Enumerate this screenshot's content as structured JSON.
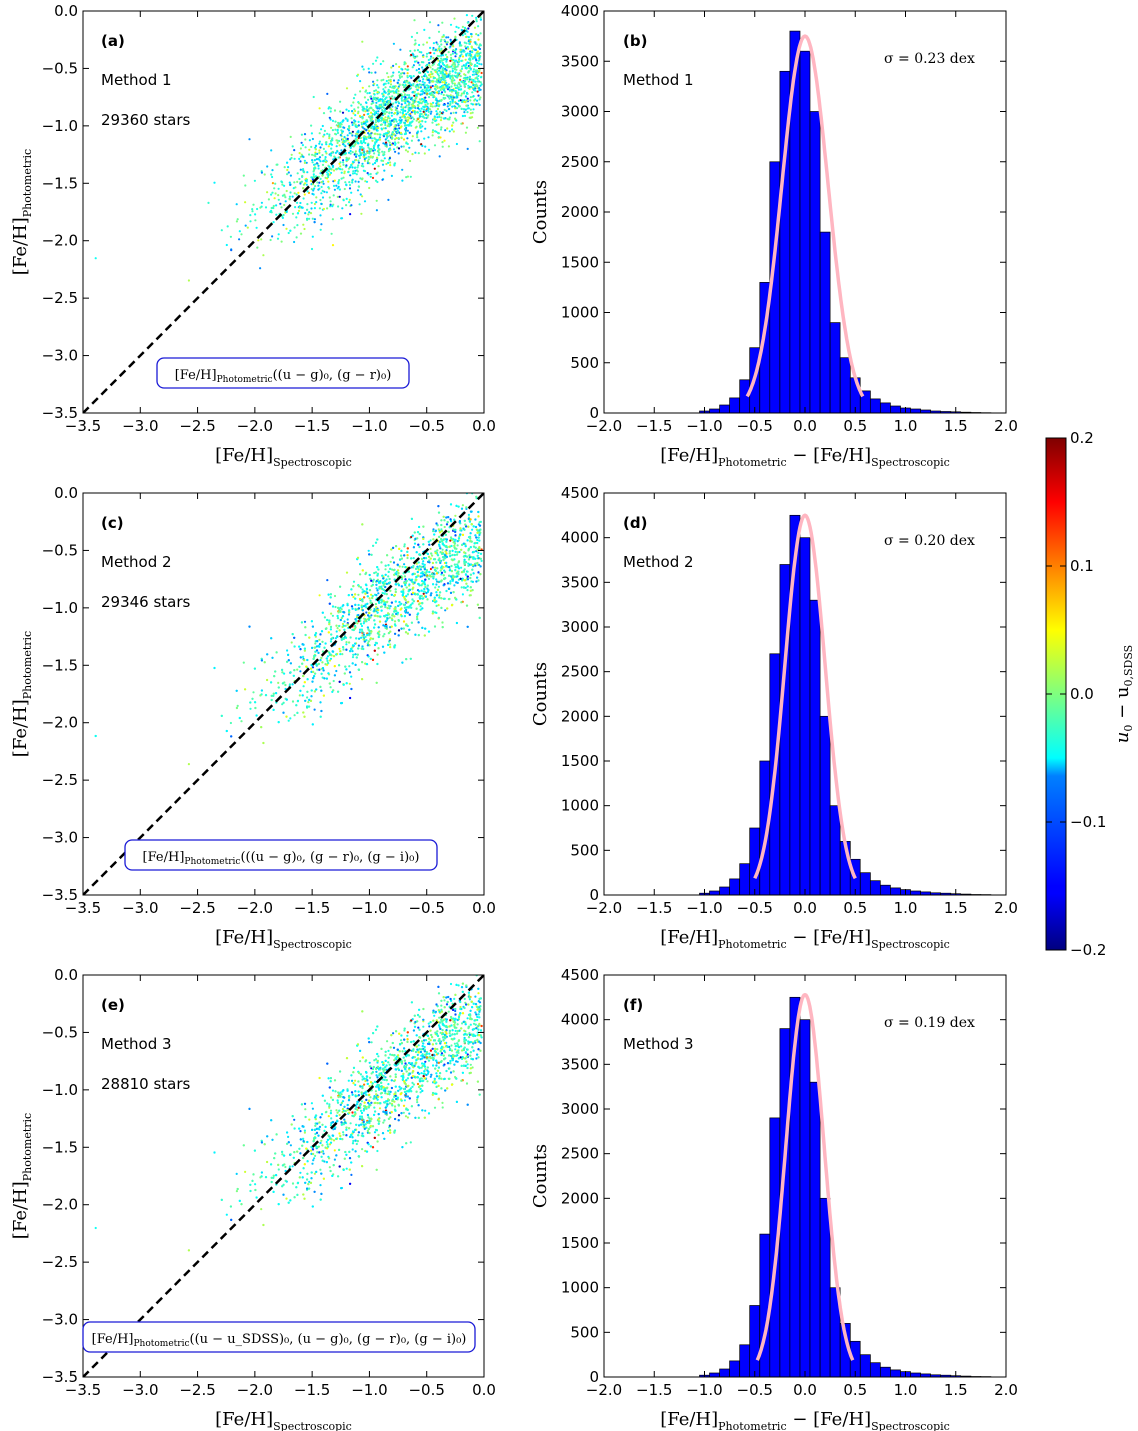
{
  "colorbar": {
    "label_main": "u",
    "label_sub0": "0",
    "label_minus": " − u",
    "label_sub1": "0,SDSS",
    "ticks": [
      "0.2",
      "0.1",
      "0.0",
      "−0.1",
      "−0.2"
    ],
    "range": [
      -0.2,
      0.2
    ],
    "colormap": "jet"
  },
  "scatter_xlabel": {
    "main": "[Fe/H]",
    "sub": "Spectroscopic"
  },
  "scatter_ylabel": {
    "main": "[Fe/H]",
    "sub": "Photometric"
  },
  "hist_xlabel": {
    "main1": "[Fe/H]",
    "sub1": "Photometric",
    "mid": " − [Fe/H]",
    "sub2": "Spectroscopic"
  },
  "hist_ylabel": "Counts",
  "scatter_xticks": [
    "−3.5",
    "−3.0",
    "−2.5",
    "−2.0",
    "−1.5",
    "−1.0",
    "−0.5",
    "0.0"
  ],
  "scatter_yticks": [
    "0.0",
    "−0.5",
    "−1.0",
    "−1.5",
    "−2.0",
    "−2.5",
    "−3.0",
    "−3.5"
  ],
  "hist_xticks": [
    "−2.0",
    "−1.5",
    "−1.0",
    "−0.5",
    "0.0",
    "0.5",
    "1.0",
    "1.5",
    "2.0"
  ],
  "panels": [
    {
      "scatter": {
        "label": "(a)",
        "method": "Method 1",
        "count": "29360 stars",
        "formula_main": "[Fe/H]",
        "formula_sub": "Photometric",
        "formula_args": "((u − g)₀, (g − r)₀)"
      },
      "hist": {
        "label": "(b)",
        "method": "Method 1",
        "sigma": "σ = 0.23 dex",
        "yticks": [
          "0",
          "500",
          "1000",
          "1500",
          "2000",
          "2500",
          "3000",
          "3500",
          "4000"
        ]
      }
    },
    {
      "scatter": {
        "label": "(c)",
        "method": "Method 2",
        "count": "29346 stars",
        "formula_main": "[Fe/H]",
        "formula_sub": "Photometric",
        "formula_args": "(((u − g)₀, (g − r)₀, (g − i)₀)"
      },
      "hist": {
        "label": "(d)",
        "method": "Method 2",
        "sigma": "σ = 0.20 dex",
        "yticks": [
          "0",
          "500",
          "1000",
          "1500",
          "2000",
          "2500",
          "3000",
          "3500",
          "4000",
          "4500"
        ]
      }
    },
    {
      "scatter": {
        "label": "(e)",
        "method": "Method 3",
        "count": "28810 stars",
        "formula_main": "[Fe/H]",
        "formula_sub": "Photometric",
        "formula_args": "((u − u_SDSS)₀, (u − g)₀, (g − r)₀, (g − i)₀)"
      },
      "hist": {
        "label": "(f)",
        "method": "Method 3",
        "sigma": "σ = 0.19 dex",
        "yticks": [
          "0",
          "500",
          "1000",
          "1500",
          "2000",
          "2500",
          "3000",
          "3500",
          "4000",
          "4500"
        ]
      }
    }
  ],
  "chart_data": [
    {
      "type": "scatter",
      "panel": "(a)",
      "xlim": [
        -3.5,
        0.0
      ],
      "ylim": [
        -3.5,
        0.0
      ],
      "n_stars": 29360,
      "reference_line": "one-to-one dashed",
      "color_by": "u0 − u0,SDSS",
      "trend": {
        "x": [
          -2.8,
          -2.0,
          -1.5,
          -1.0,
          -0.5,
          0.0
        ],
        "y": [
          -2.1,
          -1.8,
          -1.45,
          -1.05,
          -0.7,
          -0.45
        ]
      }
    },
    {
      "type": "bar",
      "panel": "(b)",
      "xlim": [
        -2.0,
        2.0
      ],
      "ylim": [
        0,
        4000
      ],
      "bin_width": 0.1,
      "bins": [
        -1.0,
        -0.9,
        -0.8,
        -0.7,
        -0.6,
        -0.5,
        -0.4,
        -0.3,
        -0.2,
        -0.1,
        0.0,
        0.1,
        0.2,
        0.3,
        0.4,
        0.5,
        0.6,
        0.7,
        0.8,
        0.9,
        1.0,
        1.1,
        1.2,
        1.3,
        1.4,
        1.5,
        1.6,
        1.7,
        1.8
      ],
      "values": [
        20,
        40,
        80,
        150,
        330,
        650,
        1300,
        2500,
        3400,
        3800,
        3600,
        3000,
        1800,
        900,
        550,
        350,
        220,
        140,
        100,
        70,
        50,
        40,
        30,
        20,
        15,
        12,
        8,
        5,
        3
      ],
      "gaussian_fit": {
        "mean": 0.0,
        "sigma": 0.23,
        "peak": 3750
      }
    },
    {
      "type": "scatter",
      "panel": "(c)",
      "xlim": [
        -3.5,
        0.0
      ],
      "ylim": [
        -3.5,
        0.0
      ],
      "n_stars": 29346,
      "reference_line": "one-to-one dashed",
      "color_by": "u0 − u0,SDSS",
      "trend": {
        "x": [
          -2.8,
          -2.0,
          -1.5,
          -1.0,
          -0.5,
          0.0
        ],
        "y": [
          -2.1,
          -1.85,
          -1.5,
          -1.05,
          -0.7,
          -0.4
        ]
      }
    },
    {
      "type": "bar",
      "panel": "(d)",
      "xlim": [
        -2.0,
        2.0
      ],
      "ylim": [
        0,
        4500
      ],
      "bin_width": 0.1,
      "bins": [
        -1.0,
        -0.9,
        -0.8,
        -0.7,
        -0.6,
        -0.5,
        -0.4,
        -0.3,
        -0.2,
        -0.1,
        0.0,
        0.1,
        0.2,
        0.3,
        0.4,
        0.5,
        0.6,
        0.7,
        0.8,
        0.9,
        1.0,
        1.1,
        1.2,
        1.3,
        1.4,
        1.5,
        1.6,
        1.7,
        1.8
      ],
      "values": [
        20,
        45,
        90,
        180,
        350,
        750,
        1500,
        2700,
        3700,
        4250,
        4000,
        3300,
        2000,
        1000,
        600,
        400,
        250,
        160,
        110,
        80,
        60,
        45,
        35,
        25,
        20,
        15,
        10,
        6,
        4
      ],
      "gaussian_fit": {
        "mean": 0.0,
        "sigma": 0.2,
        "peak": 4250
      }
    },
    {
      "type": "scatter",
      "panel": "(e)",
      "xlim": [
        -3.5,
        0.0
      ],
      "ylim": [
        -3.5,
        0.0
      ],
      "n_stars": 28810,
      "reference_line": "one-to-one dashed",
      "color_by": "u0 − u0,SDSS",
      "trend": {
        "x": [
          -2.8,
          -2.0,
          -1.5,
          -1.0,
          -0.5,
          0.0
        ],
        "y": [
          -2.15,
          -1.85,
          -1.5,
          -1.1,
          -0.7,
          -0.35
        ]
      }
    },
    {
      "type": "bar",
      "panel": "(f)",
      "xlim": [
        -2.0,
        2.0
      ],
      "ylim": [
        0,
        4500
      ],
      "bin_width": 0.1,
      "bins": [
        -1.0,
        -0.9,
        -0.8,
        -0.7,
        -0.6,
        -0.5,
        -0.4,
        -0.3,
        -0.2,
        -0.1,
        0.0,
        0.1,
        0.2,
        0.3,
        0.4,
        0.5,
        0.6,
        0.7,
        0.8,
        0.9,
        1.0,
        1.1,
        1.2,
        1.3,
        1.4,
        1.5,
        1.6,
        1.7,
        1.8
      ],
      "values": [
        20,
        45,
        90,
        180,
        360,
        800,
        1600,
        2900,
        3900,
        4250,
        4000,
        3300,
        2000,
        1000,
        600,
        400,
        250,
        160,
        110,
        80,
        60,
        45,
        35,
        25,
        20,
        15,
        10,
        6,
        4
      ],
      "gaussian_fit": {
        "mean": 0.0,
        "sigma": 0.19,
        "peak": 4280
      }
    }
  ]
}
